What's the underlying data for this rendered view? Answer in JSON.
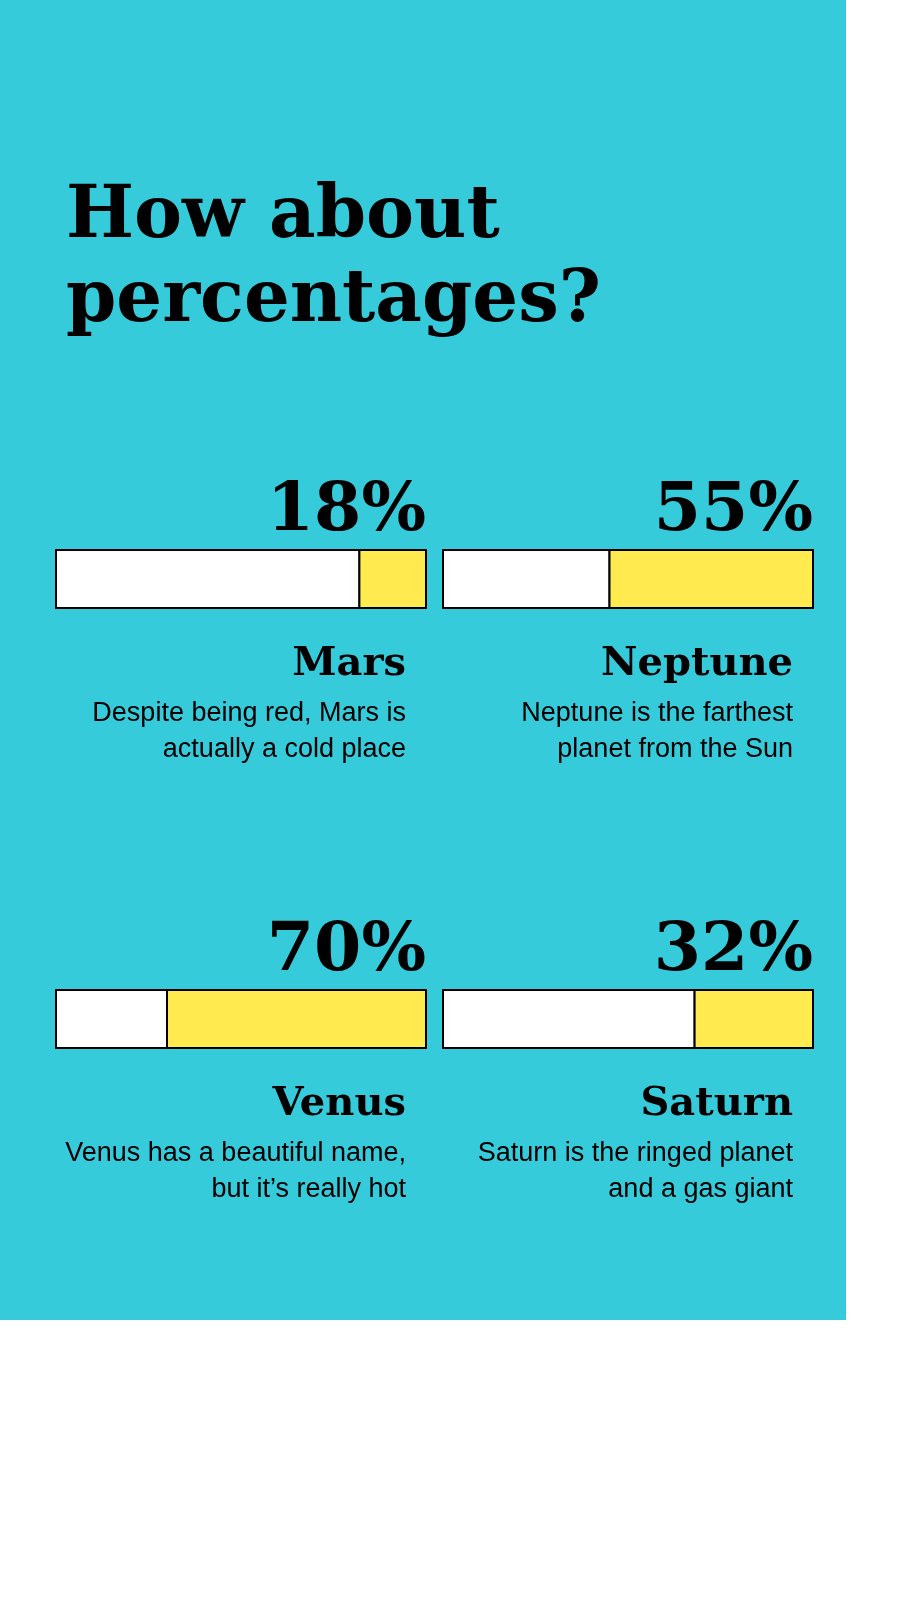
{
  "chart_data": [
    {
      "type": "other",
      "title": "How about percentages?"
    },
    {
      "type": "bar",
      "orientation": "horizontal",
      "stacked": true,
      "categories": [
        "Mars"
      ],
      "xlim": [
        0,
        100
      ],
      "tick_labels": "y",
      "series": [
        {
          "color": "#ffffff",
          "values": [
            82
          ]
        },
        {
          "color": "#ffeb4f",
          "values": [
            18
          ],
          "value_labels": [
            "18%"
          ]
        }
      ],
      "annotations": [
        "Despite being red, Mars is actually a cold place"
      ]
    },
    {
      "type": "bar",
      "orientation": "horizontal",
      "stacked": true,
      "categories": [
        "Neptune"
      ],
      "xlim": [
        0,
        100
      ],
      "tick_labels": "y",
      "series": [
        {
          "color": "#ffffff",
          "values": [
            45
          ]
        },
        {
          "color": "#ffeb4f",
          "values": [
            55
          ],
          "value_labels": [
            "55%"
          ]
        }
      ],
      "annotations": [
        "Neptune is the farthest planet from the Sun"
      ]
    },
    {
      "type": "bar",
      "orientation": "horizontal",
      "stacked": true,
      "categories": [
        "Venus"
      ],
      "xlim": [
        0,
        100
      ],
      "tick_labels": "y",
      "series": [
        {
          "color": "#ffffff",
          "values": [
            30
          ]
        },
        {
          "color": "#ffeb4f",
          "values": [
            70
          ],
          "value_labels": [
            "70%"
          ]
        }
      ],
      "annotations": [
        "Venus has a beautiful name, but it’s really hot"
      ]
    },
    {
      "type": "bar",
      "orientation": "horizontal",
      "stacked": true,
      "categories": [
        "Saturn"
      ],
      "xlim": [
        0,
        100
      ],
      "tick_labels": "y",
      "series": [
        {
          "color": "#ffffff",
          "values": [
            68
          ]
        },
        {
          "color": "#ffeb4f",
          "values": [
            32
          ],
          "value_labels": [
            "32%"
          ]
        }
      ],
      "annotations": [
        "Saturn is the ringed planet and a gas giant"
      ]
    }
  ]
}
